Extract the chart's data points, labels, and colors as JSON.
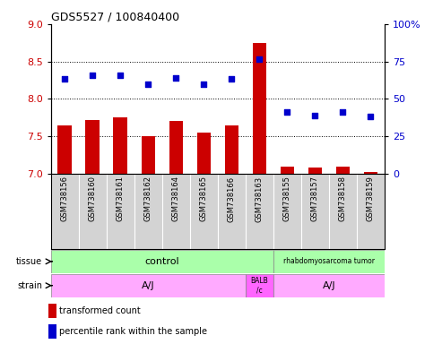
{
  "title": "GDS5527 / 100840400",
  "samples": [
    "GSM738156",
    "GSM738160",
    "GSM738161",
    "GSM738162",
    "GSM738164",
    "GSM738165",
    "GSM738166",
    "GSM738163",
    "GSM738155",
    "GSM738157",
    "GSM738158",
    "GSM738159"
  ],
  "bar_values": [
    7.65,
    7.72,
    7.75,
    7.5,
    7.7,
    7.55,
    7.65,
    8.75,
    7.1,
    7.08,
    7.1,
    7.02
  ],
  "dot_values": [
    8.27,
    8.32,
    8.32,
    8.2,
    8.28,
    8.2,
    8.27,
    8.53,
    7.82,
    7.78,
    7.82,
    7.76
  ],
  "ylim_left": [
    7.0,
    9.0
  ],
  "ylim_right": [
    0,
    100
  ],
  "yticks_left": [
    7.0,
    7.5,
    8.0,
    8.5,
    9.0
  ],
  "yticks_right": [
    0,
    25,
    50,
    75,
    100
  ],
  "ytick_labels_right": [
    "0",
    "25",
    "50",
    "75",
    "100%"
  ],
  "bar_color": "#cc0000",
  "dot_color": "#0000cc",
  "grid_lines": [
    7.5,
    8.0,
    8.5
  ],
  "tissue_label": "tissue",
  "strain_label": "strain",
  "legend_bar": "transformed count",
  "legend_dot": "percentile rank within the sample",
  "control_color": "#aaffaa",
  "tumor_color": "#aaffaa",
  "strain_aj_color": "#ffaaff",
  "strain_balb_color": "#ff66ff",
  "xlabel_bg_color": "#d3d3d3"
}
